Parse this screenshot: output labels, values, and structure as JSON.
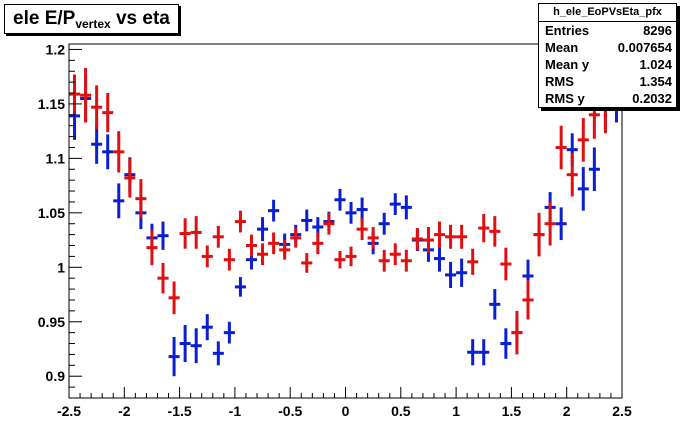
{
  "title": {
    "main": "ele E/P",
    "sub": "vertex",
    "rest": " vs eta"
  },
  "stats": {
    "name": "h_ele_EoPVsEta_pfx",
    "rows": [
      {
        "key": "Entries",
        "value": "8296"
      },
      {
        "key": "Mean",
        "value": "0.007654"
      },
      {
        "key": "Mean y",
        "value": "1.024"
      },
      {
        "key": "RMS",
        "value": "1.354"
      },
      {
        "key": "RMS y",
        "value": "0.2032"
      }
    ]
  },
  "colors": {
    "blue": "#0a1ed2",
    "red": "#e01010",
    "axis": "#000000"
  },
  "chart_data": {
    "type": "scatter",
    "title": "ele E/P vertex vs eta",
    "xlim": [
      -2.5,
      2.5
    ],
    "ylim": [
      0.88,
      1.205
    ],
    "x_ticks": [
      -2.5,
      -2,
      -1.5,
      -1,
      -0.5,
      0,
      0.5,
      1,
      1.5,
      2,
      2.5
    ],
    "x_tick_labels": [
      "-2.5",
      "-2",
      "-1.5",
      "-1",
      "-0.5",
      "0",
      "0.5",
      "1",
      "1.5",
      "2",
      "2.5"
    ],
    "y_ticks": [
      0.9,
      0.95,
      1,
      1.05,
      1.1,
      1.15,
      1.2
    ],
    "y_tick_labels": [
      "0.9",
      "0.95",
      "1",
      "1.05",
      "1.1",
      "1.15",
      "1.2"
    ],
    "bin_halfwidth": 0.05,
    "series": [
      {
        "color": "#0a1ed2",
        "points": [
          {
            "x": -2.45,
            "y": 1.139,
            "err": 0.022
          },
          {
            "x": -2.35,
            "y": 1.155,
            "err": 0.022
          },
          {
            "x": -2.25,
            "y": 1.113,
            "err": 0.018
          },
          {
            "x": -2.15,
            "y": 1.106,
            "err": 0.016
          },
          {
            "x": -2.05,
            "y": 1.061,
            "err": 0.016
          },
          {
            "x": -1.95,
            "y": 1.085,
            "err": 0.016
          },
          {
            "x": -1.85,
            "y": 1.05,
            "err": 0.015
          },
          {
            "x": -1.75,
            "y": 1.027,
            "err": 0.013
          },
          {
            "x": -1.65,
            "y": 1.029,
            "err": 0.013
          },
          {
            "x": -1.55,
            "y": 0.918,
            "err": 0.018
          },
          {
            "x": -1.45,
            "y": 0.93,
            "err": 0.017
          },
          {
            "x": -1.35,
            "y": 0.928,
            "err": 0.016
          },
          {
            "x": -1.25,
            "y": 0.945,
            "err": 0.012
          },
          {
            "x": -1.15,
            "y": 0.921,
            "err": 0.011
          },
          {
            "x": -1.05,
            "y": 0.94,
            "err": 0.01
          },
          {
            "x": -0.95,
            "y": 0.982,
            "err": 0.009
          },
          {
            "x": -0.85,
            "y": 1.007,
            "err": 0.009
          },
          {
            "x": -0.75,
            "y": 1.035,
            "err": 0.011
          },
          {
            "x": -0.65,
            "y": 1.052,
            "err": 0.01
          },
          {
            "x": -0.55,
            "y": 1.021,
            "err": 0.01
          },
          {
            "x": -0.45,
            "y": 1.03,
            "err": 0.009
          },
          {
            "x": -0.35,
            "y": 1.043,
            "err": 0.01
          },
          {
            "x": -0.25,
            "y": 1.037,
            "err": 0.009
          },
          {
            "x": -0.15,
            "y": 1.042,
            "err": 0.009
          },
          {
            "x": -0.05,
            "y": 1.062,
            "err": 0.01
          },
          {
            "x": 0.05,
            "y": 1.05,
            "err": 0.01
          },
          {
            "x": 0.15,
            "y": 1.053,
            "err": 0.011
          },
          {
            "x": 0.25,
            "y": 1.022,
            "err": 0.01
          },
          {
            "x": 0.35,
            "y": 1.04,
            "err": 0.01
          },
          {
            "x": 0.45,
            "y": 1.058,
            "err": 0.01
          },
          {
            "x": 0.55,
            "y": 1.055,
            "err": 0.011
          },
          {
            "x": 0.65,
            "y": 1.025,
            "err": 0.01
          },
          {
            "x": 0.75,
            "y": 1.016,
            "err": 0.011
          },
          {
            "x": 0.85,
            "y": 1.008,
            "err": 0.012
          },
          {
            "x": 0.95,
            "y": 0.993,
            "err": 0.012
          },
          {
            "x": 1.05,
            "y": 0.995,
            "err": 0.013
          },
          {
            "x": 1.15,
            "y": 0.922,
            "err": 0.012
          },
          {
            "x": 1.25,
            "y": 0.922,
            "err": 0.012
          },
          {
            "x": 1.35,
            "y": 0.966,
            "err": 0.014
          },
          {
            "x": 1.45,
            "y": 0.93,
            "err": 0.014
          },
          {
            "x": 1.55,
            "y": 0.94,
            "err": 0.013
          },
          {
            "x": 1.65,
            "y": 0.992,
            "err": 0.015
          },
          {
            "x": 1.75,
            "y": 1.03,
            "err": 0.013
          },
          {
            "x": 1.85,
            "y": 1.055,
            "err": 0.014
          },
          {
            "x": 1.95,
            "y": 1.04,
            "err": 0.015
          },
          {
            "x": 2.05,
            "y": 1.108,
            "err": 0.015
          },
          {
            "x": 2.15,
            "y": 1.072,
            "err": 0.02
          },
          {
            "x": 2.25,
            "y": 1.09,
            "err": 0.02
          },
          {
            "x": 2.35,
            "y": 1.145,
            "err": 0.02
          },
          {
            "x": 2.45,
            "y": 1.145,
            "err": 0.012
          }
        ]
      },
      {
        "color": "#e01010",
        "points": [
          {
            "x": -2.45,
            "y": 1.159,
            "err": 0.018
          },
          {
            "x": -2.35,
            "y": 1.158,
            "err": 0.025
          },
          {
            "x": -2.25,
            "y": 1.147,
            "err": 0.02
          },
          {
            "x": -2.15,
            "y": 1.142,
            "err": 0.018
          },
          {
            "x": -2.05,
            "y": 1.106,
            "err": 0.019
          },
          {
            "x": -1.95,
            "y": 1.082,
            "err": 0.018
          },
          {
            "x": -1.85,
            "y": 1.063,
            "err": 0.018
          },
          {
            "x": -1.75,
            "y": 1.018,
            "err": 0.016
          },
          {
            "x": -1.65,
            "y": 0.99,
            "err": 0.014
          },
          {
            "x": -1.55,
            "y": 0.972,
            "err": 0.015
          },
          {
            "x": -1.45,
            "y": 1.031,
            "err": 0.014
          },
          {
            "x": -1.35,
            "y": 1.032,
            "err": 0.015
          },
          {
            "x": -1.25,
            "y": 1.01,
            "err": 0.01
          },
          {
            "x": -1.15,
            "y": 1.028,
            "err": 0.01
          },
          {
            "x": -1.05,
            "y": 1.007,
            "err": 0.01
          },
          {
            "x": -0.95,
            "y": 1.042,
            "err": 0.01
          },
          {
            "x": -0.85,
            "y": 1.02,
            "err": 0.01
          },
          {
            "x": -0.75,
            "y": 1.012,
            "err": 0.01
          },
          {
            "x": -0.65,
            "y": 1.022,
            "err": 0.01
          },
          {
            "x": -0.55,
            "y": 1.016,
            "err": 0.009
          },
          {
            "x": -0.45,
            "y": 1.027,
            "err": 0.009
          },
          {
            "x": -0.35,
            "y": 1.004,
            "err": 0.009
          },
          {
            "x": -0.25,
            "y": 1.022,
            "err": 0.01
          },
          {
            "x": -0.15,
            "y": 1.04,
            "err": 0.01
          },
          {
            "x": -0.05,
            "y": 1.007,
            "err": 0.008
          },
          {
            "x": 0.05,
            "y": 1.01,
            "err": 0.009
          },
          {
            "x": 0.15,
            "y": 1.035,
            "err": 0.01
          },
          {
            "x": 0.25,
            "y": 1.027,
            "err": 0.01
          },
          {
            "x": 0.35,
            "y": 1.006,
            "err": 0.01
          },
          {
            "x": 0.45,
            "y": 1.012,
            "err": 0.01
          },
          {
            "x": 0.55,
            "y": 1.006,
            "err": 0.01
          },
          {
            "x": 0.65,
            "y": 1.026,
            "err": 0.01
          },
          {
            "x": 0.75,
            "y": 1.025,
            "err": 0.012
          },
          {
            "x": 0.85,
            "y": 1.03,
            "err": 0.012
          },
          {
            "x": 0.95,
            "y": 1.028,
            "err": 0.011
          },
          {
            "x": 1.05,
            "y": 1.028,
            "err": 0.011
          },
          {
            "x": 1.15,
            "y": 1.005,
            "err": 0.012
          },
          {
            "x": 1.25,
            "y": 1.036,
            "err": 0.013
          },
          {
            "x": 1.35,
            "y": 1.033,
            "err": 0.014
          },
          {
            "x": 1.45,
            "y": 1.003,
            "err": 0.015
          },
          {
            "x": 1.55,
            "y": 0.94,
            "err": 0.02
          },
          {
            "x": 1.65,
            "y": 0.97,
            "err": 0.018
          },
          {
            "x": 1.75,
            "y": 1.03,
            "err": 0.02
          },
          {
            "x": 1.85,
            "y": 1.04,
            "err": 0.02
          },
          {
            "x": 1.95,
            "y": 1.11,
            "err": 0.02
          },
          {
            "x": 2.05,
            "y": 1.085,
            "err": 0.02
          },
          {
            "x": 2.15,
            "y": 1.117,
            "err": 0.02
          },
          {
            "x": 2.25,
            "y": 1.14,
            "err": 0.022
          },
          {
            "x": 2.35,
            "y": 1.145,
            "err": 0.022
          },
          {
            "x": 2.45,
            "y": 1.16,
            "err": 0.015
          }
        ]
      }
    ]
  }
}
